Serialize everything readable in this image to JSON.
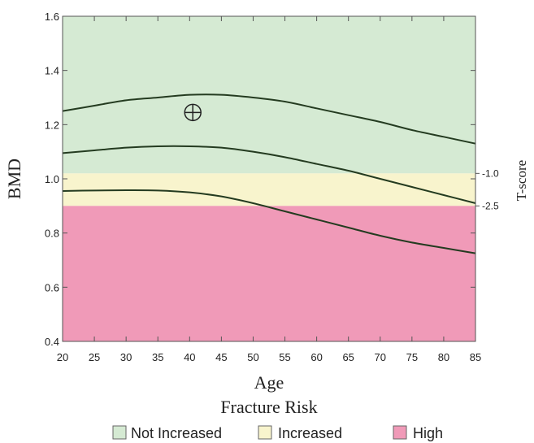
{
  "chart_data": {
    "type": "line",
    "xlabel": "Age",
    "ylabel": "BMD",
    "xlim": [
      20,
      85
    ],
    "ylim": [
      0.4,
      1.6
    ],
    "x_ticks": [
      20,
      25,
      30,
      35,
      40,
      45,
      50,
      55,
      60,
      65,
      70,
      75,
      80,
      85
    ],
    "y_ticks": [
      0.4,
      0.6,
      0.8,
      1.0,
      1.2,
      1.4,
      1.6
    ],
    "grid": false,
    "bands": [
      {
        "label": "Not Increased",
        "from": 1.02,
        "to": 1.6,
        "color": "#d5ead3"
      },
      {
        "label": "Increased",
        "from": 0.9,
        "to": 1.02,
        "color": "#f8f4cd"
      },
      {
        "label": "High",
        "from": 0.4,
        "to": 0.9,
        "color": "#f09ab8"
      }
    ],
    "right_axis": {
      "title": "T-score",
      "marks": [
        {
          "label": "-1.0",
          "y": 1.02
        },
        {
          "label": "-2.5",
          "y": 0.9
        }
      ]
    },
    "series": [
      {
        "x": [
          20,
          25,
          30,
          35,
          40,
          45,
          50,
          55,
          60,
          65,
          70,
          75,
          80,
          85
        ],
        "values": [
          1.25,
          1.27,
          1.29,
          1.3,
          1.31,
          1.31,
          1.3,
          1.285,
          1.26,
          1.235,
          1.21,
          1.18,
          1.155,
          1.13
        ]
      },
      {
        "x": [
          20,
          25,
          30,
          35,
          40,
          45,
          50,
          55,
          60,
          65,
          70,
          75,
          80,
          85
        ],
        "values": [
          1.095,
          1.105,
          1.115,
          1.12,
          1.12,
          1.115,
          1.1,
          1.08,
          1.055,
          1.03,
          1.0,
          0.97,
          0.94,
          0.91
        ]
      },
      {
        "x": [
          20,
          25,
          30,
          35,
          40,
          45,
          50,
          55,
          60,
          65,
          70,
          75,
          80,
          85
        ],
        "values": [
          0.955,
          0.957,
          0.958,
          0.957,
          0.95,
          0.935,
          0.91,
          0.88,
          0.85,
          0.82,
          0.79,
          0.765,
          0.745,
          0.725
        ]
      }
    ],
    "patient_marker": {
      "x": 40.5,
      "y": 1.245
    },
    "legend": {
      "title": "Fracture Risk",
      "items": [
        "Not Increased",
        "Increased",
        "High"
      ]
    }
  }
}
